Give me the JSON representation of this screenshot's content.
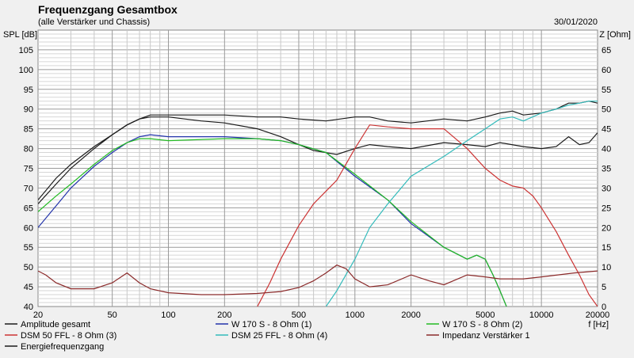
{
  "header": {
    "title": "Frequenzgang Gesamtbox",
    "subtitle": "(alle Verstärker und Chassis)",
    "date": "30/01/2020"
  },
  "chart_data": {
    "type": "line",
    "xscale": "log",
    "xlim": [
      20,
      20000
    ],
    "ylim": [
      40,
      110
    ],
    "y2lim": [
      0,
      70
    ],
    "ylabel": "SPL [dB]",
    "y2label": "Z [Ohm]",
    "xlabel": "f [Hz]",
    "grid": true,
    "legend": "bottom",
    "x_ticks": [
      20,
      50,
      100,
      200,
      500,
      1000,
      2000,
      5000,
      10000,
      20000
    ],
    "x_tick_labels": [
      "20",
      "50",
      "100",
      "200",
      "500",
      "1000",
      "2000",
      "5000",
      "10000",
      "20000"
    ],
    "y_ticks": [
      40,
      45,
      50,
      55,
      60,
      65,
      70,
      75,
      80,
      85,
      90,
      95,
      100,
      105
    ],
    "y_tick_labels": [
      "40",
      "45",
      "50",
      "55",
      "60",
      "65",
      "70",
      "75",
      "80",
      "85",
      "90",
      "95",
      "100",
      "105"
    ],
    "y2_ticks": [
      0,
      5,
      10,
      15,
      20,
      25,
      30,
      35,
      40,
      45,
      50,
      55,
      60,
      65
    ],
    "y2_tick_labels": [
      "0",
      "5",
      "10",
      "15",
      "20",
      "25",
      "30",
      "35",
      "40",
      "45",
      "50",
      "55",
      "60",
      "65"
    ],
    "series": [
      {
        "name": "Amplitude gesamt",
        "color": "#1a1a1a",
        "axis": "left",
        "points": [
          [
            20,
            67
          ],
          [
            25,
            72.5
          ],
          [
            30,
            76
          ],
          [
            40,
            80.5
          ],
          [
            50,
            83.5
          ],
          [
            60,
            86
          ],
          [
            70,
            87.5
          ],
          [
            80,
            88
          ],
          [
            100,
            88
          ],
          [
            150,
            87
          ],
          [
            200,
            86.5
          ],
          [
            300,
            85
          ],
          [
            400,
            83
          ],
          [
            500,
            81
          ],
          [
            600,
            79.5
          ],
          [
            800,
            78.5
          ],
          [
            1000,
            80
          ],
          [
            1200,
            81
          ],
          [
            1500,
            80.5
          ],
          [
            2000,
            80
          ],
          [
            3000,
            81.5
          ],
          [
            4000,
            81
          ],
          [
            5000,
            80.5
          ],
          [
            6000,
            81.5
          ],
          [
            8000,
            80.5
          ],
          [
            10000,
            80
          ],
          [
            12000,
            80.5
          ],
          [
            14000,
            83
          ],
          [
            16000,
            81
          ],
          [
            18000,
            81.5
          ],
          [
            20000,
            84
          ]
        ]
      },
      {
        "name": "Energiefrequenzgang",
        "color": "#1a1a1a",
        "axis": "left",
        "points": [
          [
            20,
            66
          ],
          [
            25,
            71
          ],
          [
            30,
            75
          ],
          [
            40,
            80
          ],
          [
            50,
            83.5
          ],
          [
            60,
            86
          ],
          [
            70,
            87.5
          ],
          [
            80,
            88.5
          ],
          [
            100,
            88.5
          ],
          [
            150,
            88.5
          ],
          [
            200,
            88.5
          ],
          [
            300,
            88
          ],
          [
            400,
            88
          ],
          [
            500,
            87.5
          ],
          [
            700,
            87
          ],
          [
            1000,
            88
          ],
          [
            1200,
            88
          ],
          [
            1500,
            87
          ],
          [
            2000,
            86.5
          ],
          [
            3000,
            87.5
          ],
          [
            4000,
            87
          ],
          [
            5000,
            88
          ],
          [
            6000,
            89
          ],
          [
            7000,
            89.5
          ],
          [
            8000,
            88.5
          ],
          [
            10000,
            89
          ],
          [
            12000,
            90
          ],
          [
            14000,
            91.5
          ],
          [
            16000,
            91.5
          ],
          [
            18000,
            92
          ],
          [
            20000,
            91.5
          ]
        ]
      },
      {
        "name": "W 170 S - 8 Ohm (1)",
        "color": "#2233aa",
        "axis": "left",
        "points": [
          [
            20,
            60
          ],
          [
            25,
            65.5
          ],
          [
            30,
            70
          ],
          [
            40,
            75.5
          ],
          [
            50,
            79
          ],
          [
            60,
            81.5
          ],
          [
            70,
            83
          ],
          [
            80,
            83.5
          ],
          [
            100,
            83
          ],
          [
            200,
            83
          ],
          [
            300,
            82.5
          ],
          [
            400,
            82
          ],
          [
            500,
            81
          ],
          [
            700,
            79
          ],
          [
            1000,
            73
          ],
          [
            1500,
            67
          ],
          [
            2000,
            61
          ],
          [
            3000,
            55
          ],
          [
            4000,
            52
          ],
          [
            4500,
            53
          ],
          [
            5000,
            52
          ],
          [
            5500,
            48
          ],
          [
            6000,
            44
          ],
          [
            6500,
            40
          ]
        ]
      },
      {
        "name": "W 170 S - 8 Ohm (2)",
        "color": "#22bb22",
        "axis": "left",
        "points": [
          [
            20,
            64
          ],
          [
            25,
            68
          ],
          [
            30,
            71
          ],
          [
            40,
            76
          ],
          [
            50,
            79.5
          ],
          [
            60,
            81.5
          ],
          [
            70,
            82.5
          ],
          [
            80,
            82.5
          ],
          [
            100,
            82
          ],
          [
            200,
            82.5
          ],
          [
            300,
            82.5
          ],
          [
            400,
            82
          ],
          [
            500,
            81
          ],
          [
            700,
            79
          ],
          [
            1000,
            73.5
          ],
          [
            1500,
            67
          ],
          [
            2000,
            61.5
          ],
          [
            3000,
            55
          ],
          [
            4000,
            52
          ],
          [
            4500,
            53
          ],
          [
            5000,
            52
          ],
          [
            5500,
            48
          ],
          [
            6000,
            44
          ],
          [
            6500,
            40
          ]
        ]
      },
      {
        "name": "DSM 50 FFL - 8 Ohm (3)",
        "color": "#cc3333",
        "axis": "left",
        "points": [
          [
            300,
            40
          ],
          [
            350,
            46
          ],
          [
            400,
            52
          ],
          [
            500,
            60.5
          ],
          [
            600,
            66
          ],
          [
            800,
            72
          ],
          [
            1000,
            80
          ],
          [
            1200,
            86
          ],
          [
            1500,
            85.5
          ],
          [
            2000,
            85
          ],
          [
            3000,
            85
          ],
          [
            4000,
            80
          ],
          [
            5000,
            75
          ],
          [
            6000,
            72
          ],
          [
            7000,
            70.5
          ],
          [
            8000,
            70
          ],
          [
            9000,
            68
          ],
          [
            10000,
            65
          ],
          [
            12000,
            59
          ],
          [
            14000,
            53
          ],
          [
            16000,
            48
          ],
          [
            18000,
            43
          ],
          [
            20000,
            40
          ]
        ]
      },
      {
        "name": "DSM 25 FFL - 8 Ohm (4)",
        "color": "#33bbbb",
        "axis": "left",
        "points": [
          [
            700,
            40
          ],
          [
            800,
            44
          ],
          [
            1000,
            52
          ],
          [
            1200,
            60
          ],
          [
            1500,
            66
          ],
          [
            2000,
            73
          ],
          [
            3000,
            78
          ],
          [
            4000,
            82
          ],
          [
            5000,
            85
          ],
          [
            6000,
            87.5
          ],
          [
            7000,
            88
          ],
          [
            8000,
            87
          ],
          [
            10000,
            89
          ],
          [
            12000,
            90
          ],
          [
            14000,
            91
          ],
          [
            16000,
            91.5
          ],
          [
            18000,
            92
          ],
          [
            20000,
            92
          ]
        ]
      },
      {
        "name": "Impedanz Verstärker 1",
        "color": "#8b2a2a",
        "axis": "right",
        "points": [
          [
            20,
            9
          ],
          [
            22,
            8
          ],
          [
            25,
            6
          ],
          [
            30,
            4.5
          ],
          [
            40,
            4.5
          ],
          [
            50,
            6
          ],
          [
            60,
            8.5
          ],
          [
            70,
            6
          ],
          [
            80,
            4.5
          ],
          [
            100,
            3.5
          ],
          [
            150,
            3
          ],
          [
            200,
            3
          ],
          [
            300,
            3.3
          ],
          [
            400,
            3.8
          ],
          [
            500,
            4.8
          ],
          [
            600,
            6.5
          ],
          [
            700,
            8.5
          ],
          [
            800,
            10.5
          ],
          [
            900,
            9.5
          ],
          [
            1000,
            7
          ],
          [
            1200,
            5
          ],
          [
            1500,
            5.5
          ],
          [
            2000,
            8
          ],
          [
            2500,
            6.5
          ],
          [
            3000,
            5.5
          ],
          [
            4000,
            8
          ],
          [
            5000,
            7.5
          ],
          [
            6000,
            7
          ],
          [
            8000,
            7
          ],
          [
            10000,
            7.5
          ],
          [
            15000,
            8.5
          ],
          [
            20000,
            9
          ]
        ]
      }
    ]
  }
}
